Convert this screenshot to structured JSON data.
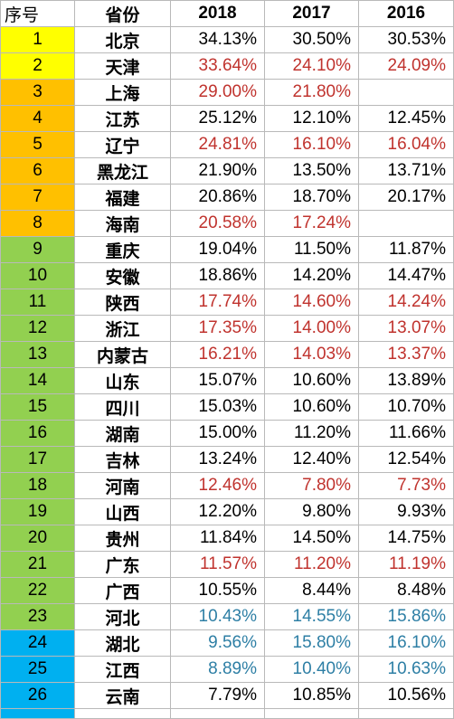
{
  "header": {
    "seq": "序号",
    "province": "省份",
    "y2018": "2018",
    "y2017": "2017",
    "y2016": "2016"
  },
  "colors": {
    "yellow": "#ffff00",
    "orange": "#ffc000",
    "green": "#92d050",
    "blue": "#00b0f0",
    "red": "#c0332e",
    "teal": "#2e7fa5"
  },
  "rows": [
    {
      "seq": "1",
      "province": "北京",
      "v2018": "34.13%",
      "v2017": "30.50%",
      "v2016": "30.53%",
      "group": "yellow",
      "tone": ""
    },
    {
      "seq": "2",
      "province": "天津",
      "v2018": "33.64%",
      "v2017": "24.10%",
      "v2016": "24.09%",
      "group": "yellow",
      "tone": "red"
    },
    {
      "seq": "3",
      "province": "上海",
      "v2018": "29.00%",
      "v2017": "21.80%",
      "v2016": "",
      "group": "orange",
      "tone": "red"
    },
    {
      "seq": "4",
      "province": "江苏",
      "v2018": "25.12%",
      "v2017": "12.10%",
      "v2016": "12.45%",
      "group": "orange",
      "tone": ""
    },
    {
      "seq": "5",
      "province": "辽宁",
      "v2018": "24.81%",
      "v2017": "16.10%",
      "v2016": "16.04%",
      "group": "orange",
      "tone": "red"
    },
    {
      "seq": "6",
      "province": "黑龙江",
      "v2018": "21.90%",
      "v2017": "13.50%",
      "v2016": "13.71%",
      "group": "orange",
      "tone": ""
    },
    {
      "seq": "7",
      "province": "福建",
      "v2018": "20.86%",
      "v2017": "18.70%",
      "v2016": "20.17%",
      "group": "orange",
      "tone": ""
    },
    {
      "seq": "8",
      "province": "海南",
      "v2018": "20.58%",
      "v2017": "17.24%",
      "v2016": "",
      "group": "orange",
      "tone": "red"
    },
    {
      "seq": "9",
      "province": "重庆",
      "v2018": "19.04%",
      "v2017": "11.50%",
      "v2016": "11.87%",
      "group": "green",
      "tone": ""
    },
    {
      "seq": "10",
      "province": "安徽",
      "v2018": "18.86%",
      "v2017": "14.20%",
      "v2016": "14.47%",
      "group": "green",
      "tone": ""
    },
    {
      "seq": "11",
      "province": "陕西",
      "v2018": "17.74%",
      "v2017": "14.60%",
      "v2016": "14.24%",
      "group": "green",
      "tone": "red"
    },
    {
      "seq": "12",
      "province": "浙江",
      "v2018": "17.35%",
      "v2017": "14.00%",
      "v2016": "13.07%",
      "group": "green",
      "tone": "red"
    },
    {
      "seq": "13",
      "province": "内蒙古",
      "v2018": "16.21%",
      "v2017": "14.03%",
      "v2016": "13.37%",
      "group": "green",
      "tone": "red"
    },
    {
      "seq": "14",
      "province": "山东",
      "v2018": "15.07%",
      "v2017": "10.60%",
      "v2016": "13.89%",
      "group": "green",
      "tone": ""
    },
    {
      "seq": "15",
      "province": "四川",
      "v2018": "15.03%",
      "v2017": "10.60%",
      "v2016": "10.70%",
      "group": "green",
      "tone": ""
    },
    {
      "seq": "16",
      "province": "湖南",
      "v2018": "15.00%",
      "v2017": "11.20%",
      "v2016": "11.66%",
      "group": "green",
      "tone": ""
    },
    {
      "seq": "17",
      "province": "吉林",
      "v2018": "13.24%",
      "v2017": "12.40%",
      "v2016": "12.54%",
      "group": "green",
      "tone": ""
    },
    {
      "seq": "18",
      "province": "河南",
      "v2018": "12.46%",
      "v2017": "7.80%",
      "v2016": "7.73%",
      "group": "green",
      "tone": "red"
    },
    {
      "seq": "19",
      "province": "山西",
      "v2018": "12.20%",
      "v2017": "9.80%",
      "v2016": "9.93%",
      "group": "green",
      "tone": ""
    },
    {
      "seq": "20",
      "province": "贵州",
      "v2018": "11.84%",
      "v2017": "14.50%",
      "v2016": "14.75%",
      "group": "green",
      "tone": ""
    },
    {
      "seq": "21",
      "province": "广东",
      "v2018": "11.57%",
      "v2017": "11.20%",
      "v2016": "11.19%",
      "group": "green",
      "tone": "red"
    },
    {
      "seq": "22",
      "province": "广西",
      "v2018": "10.55%",
      "v2017": "8.44%",
      "v2016": "8.48%",
      "group": "green",
      "tone": ""
    },
    {
      "seq": "23",
      "province": "河北",
      "v2018": "10.43%",
      "v2017": "14.55%",
      "v2016": "15.86%",
      "group": "green",
      "tone": "blue"
    },
    {
      "seq": "24",
      "province": "湖北",
      "v2018": "9.56%",
      "v2017": "15.80%",
      "v2016": "16.10%",
      "group": "blue",
      "tone": "blue"
    },
    {
      "seq": "25",
      "province": "江西",
      "v2018": "8.89%",
      "v2017": "10.40%",
      "v2016": "10.63%",
      "group": "blue",
      "tone": "blue"
    },
    {
      "seq": "26",
      "province": "云南",
      "v2018": "7.79%",
      "v2017": "10.85%",
      "v2016": "10.56%",
      "group": "blue",
      "tone": ""
    }
  ]
}
